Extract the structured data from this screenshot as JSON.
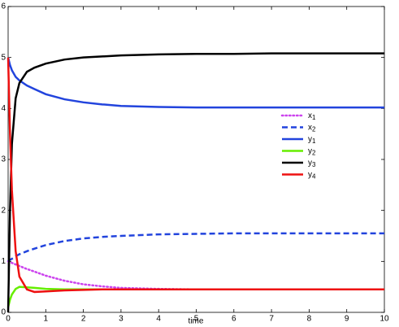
{
  "chart_data": {
    "type": "line",
    "xlabel": "time",
    "x": [
      0,
      0.05,
      0.1,
      0.2,
      0.3,
      0.5,
      0.7,
      1,
      1.5,
      2,
      2.5,
      3,
      4,
      5,
      6,
      7,
      8,
      9,
      10
    ],
    "series": [
      {
        "name": "x1",
        "color": "#cc44ee",
        "style": "dotted",
        "values": [
          1.0,
          0.98,
          0.97,
          0.94,
          0.91,
          0.85,
          0.8,
          0.72,
          0.62,
          0.55,
          0.51,
          0.48,
          0.46,
          0.45,
          0.45,
          0.45,
          0.45,
          0.45,
          0.45
        ]
      },
      {
        "name": "x2",
        "color": "#2244dd",
        "style": "dashed",
        "values": [
          1.0,
          1.03,
          1.05,
          1.1,
          1.14,
          1.2,
          1.25,
          1.32,
          1.4,
          1.45,
          1.48,
          1.5,
          1.53,
          1.54,
          1.55,
          1.55,
          1.55,
          1.55,
          1.55
        ]
      },
      {
        "name": "y1",
        "color": "#2244dd",
        "style": "solid",
        "values": [
          5.0,
          4.85,
          4.75,
          4.62,
          4.55,
          4.45,
          4.38,
          4.28,
          4.18,
          4.12,
          4.08,
          4.05,
          4.03,
          4.02,
          4.02,
          4.02,
          4.02,
          4.02,
          4.02
        ]
      },
      {
        "name": "y2",
        "color": "#66ee00",
        "style": "solid",
        "values": [
          0.1,
          0.25,
          0.35,
          0.46,
          0.5,
          0.49,
          0.48,
          0.46,
          0.45,
          0.45,
          0.45,
          0.45,
          0.45,
          0.45,
          0.45,
          0.45,
          0.45,
          0.45,
          0.45
        ]
      },
      {
        "name": "y3",
        "color": "#000000",
        "style": "solid",
        "values": [
          0,
          2,
          3.3,
          4.2,
          4.5,
          4.72,
          4.8,
          4.88,
          4.96,
          5.0,
          5.02,
          5.04,
          5.06,
          5.07,
          5.07,
          5.08,
          5.08,
          5.08,
          5.08
        ]
      },
      {
        "name": "y4",
        "color": "#ee1111",
        "style": "solid",
        "values": [
          5.0,
          3.5,
          2.4,
          1.2,
          0.7,
          0.45,
          0.4,
          0.41,
          0.43,
          0.44,
          0.45,
          0.45,
          0.45,
          0.45,
          0.45,
          0.45,
          0.45,
          0.45,
          0.45
        ]
      }
    ],
    "xlim": [
      0,
      10
    ],
    "xticks": [
      0,
      1,
      2,
      3,
      4,
      5,
      6,
      7,
      8,
      9,
      10
    ],
    "ylim": [
      0,
      6
    ],
    "yticks": [
      0,
      1,
      2,
      3,
      4,
      5,
      6
    ],
    "grid": false
  }
}
